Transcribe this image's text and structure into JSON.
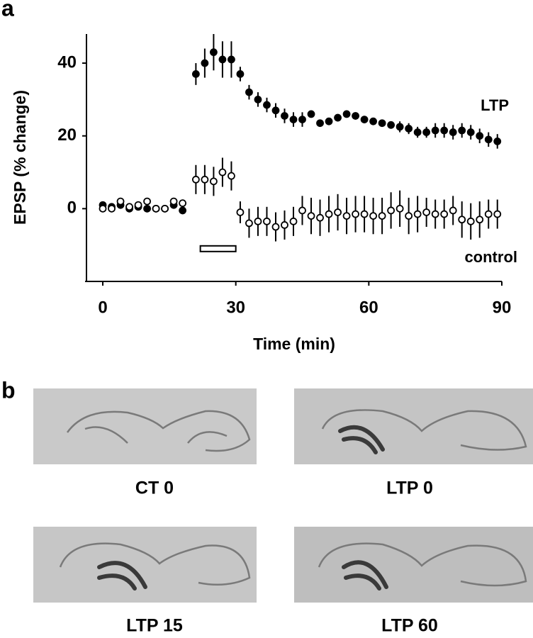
{
  "chart_data": {
    "type": "errorbar",
    "panel_label": "a",
    "xlabel": "Time (min)",
    "ylabel": "EPSP (% change)",
    "xlim": [
      -4,
      90
    ],
    "xticks": [
      0,
      30,
      60,
      90
    ],
    "ylim": [
      -20,
      48
    ],
    "yticks": [
      0,
      20,
      40
    ],
    "stimulus_x": [
      22,
      30
    ],
    "stimulus_y": -11,
    "series": [
      {
        "name": "LTP",
        "color": "#000000",
        "filled": true,
        "x": [
          0,
          2,
          4,
          6,
          8,
          10,
          12,
          14,
          16,
          18,
          21,
          23,
          25,
          27,
          29,
          31,
          33,
          35,
          37,
          39,
          41,
          43,
          45,
          47,
          49,
          51,
          53,
          55,
          57,
          59,
          61,
          63,
          65,
          67,
          69,
          71,
          73,
          75,
          77,
          79,
          81,
          83,
          85,
          87,
          89
        ],
        "values": [
          1,
          0.5,
          1,
          0,
          0.5,
          0,
          0,
          0,
          1,
          -0.5,
          37,
          40,
          43,
          41,
          41,
          37,
          32,
          30,
          28.5,
          27,
          25.5,
          24.5,
          24.5,
          26,
          23.5,
          24,
          25,
          26,
          25.5,
          24.5,
          24,
          23.5,
          23,
          22.5,
          22,
          21,
          21,
          21.5,
          21.5,
          21,
          21.5,
          21,
          20,
          19,
          18.5
        ],
        "errors": [
          1,
          1,
          1,
          1,
          1,
          1,
          1,
          1,
          1,
          1,
          3,
          4,
          5,
          5,
          5,
          2,
          2,
          2,
          2,
          2,
          2,
          2,
          2,
          1,
          1,
          1,
          1,
          1,
          1,
          1,
          1,
          1,
          1,
          1.5,
          1.5,
          1.5,
          1.5,
          2,
          2,
          2,
          2,
          2,
          2,
          2,
          2
        ]
      },
      {
        "name": "control",
        "color": "#000000",
        "filled": false,
        "x": [
          0,
          2,
          4,
          6,
          8,
          10,
          12,
          14,
          16,
          18,
          21,
          23,
          25,
          27,
          29,
          31,
          33,
          35,
          37,
          39,
          41,
          43,
          45,
          47,
          49,
          51,
          53,
          55,
          57,
          59,
          61,
          63,
          65,
          67,
          69,
          71,
          73,
          75,
          77,
          79,
          81,
          83,
          85,
          87,
          89
        ],
        "values": [
          0,
          0,
          2,
          0.5,
          1,
          2,
          0,
          0,
          2,
          1.5,
          8,
          8,
          7.5,
          10,
          9,
          -1,
          -4,
          -3.5,
          -3.5,
          -5,
          -4.5,
          -3.5,
          -0.5,
          -2,
          -2.5,
          -1.5,
          -1,
          -2,
          -1.5,
          -1.5,
          -2,
          -2,
          -0.5,
          0,
          -2,
          -1.5,
          -1,
          -1.5,
          -1.5,
          -0.5,
          -3,
          -3.5,
          -3,
          -1.5,
          -1.5
        ],
        "errors": [
          1,
          1,
          1,
          1,
          1,
          1,
          1,
          1,
          1,
          1,
          4,
          4,
          4,
          4,
          4,
          3,
          4,
          4,
          4,
          4,
          4,
          4,
          4,
          5,
          5,
          5,
          5,
          5,
          5,
          5,
          5,
          5,
          5,
          5,
          5,
          5,
          4,
          4,
          4,
          4,
          5,
          5,
          5,
          4,
          4
        ]
      }
    ]
  },
  "panel_b": {
    "panel_label": "b",
    "images": [
      {
        "label": "CT 0"
      },
      {
        "label": "LTP 0"
      },
      {
        "label": "LTP 15"
      },
      {
        "label": "LTP 60"
      }
    ]
  }
}
